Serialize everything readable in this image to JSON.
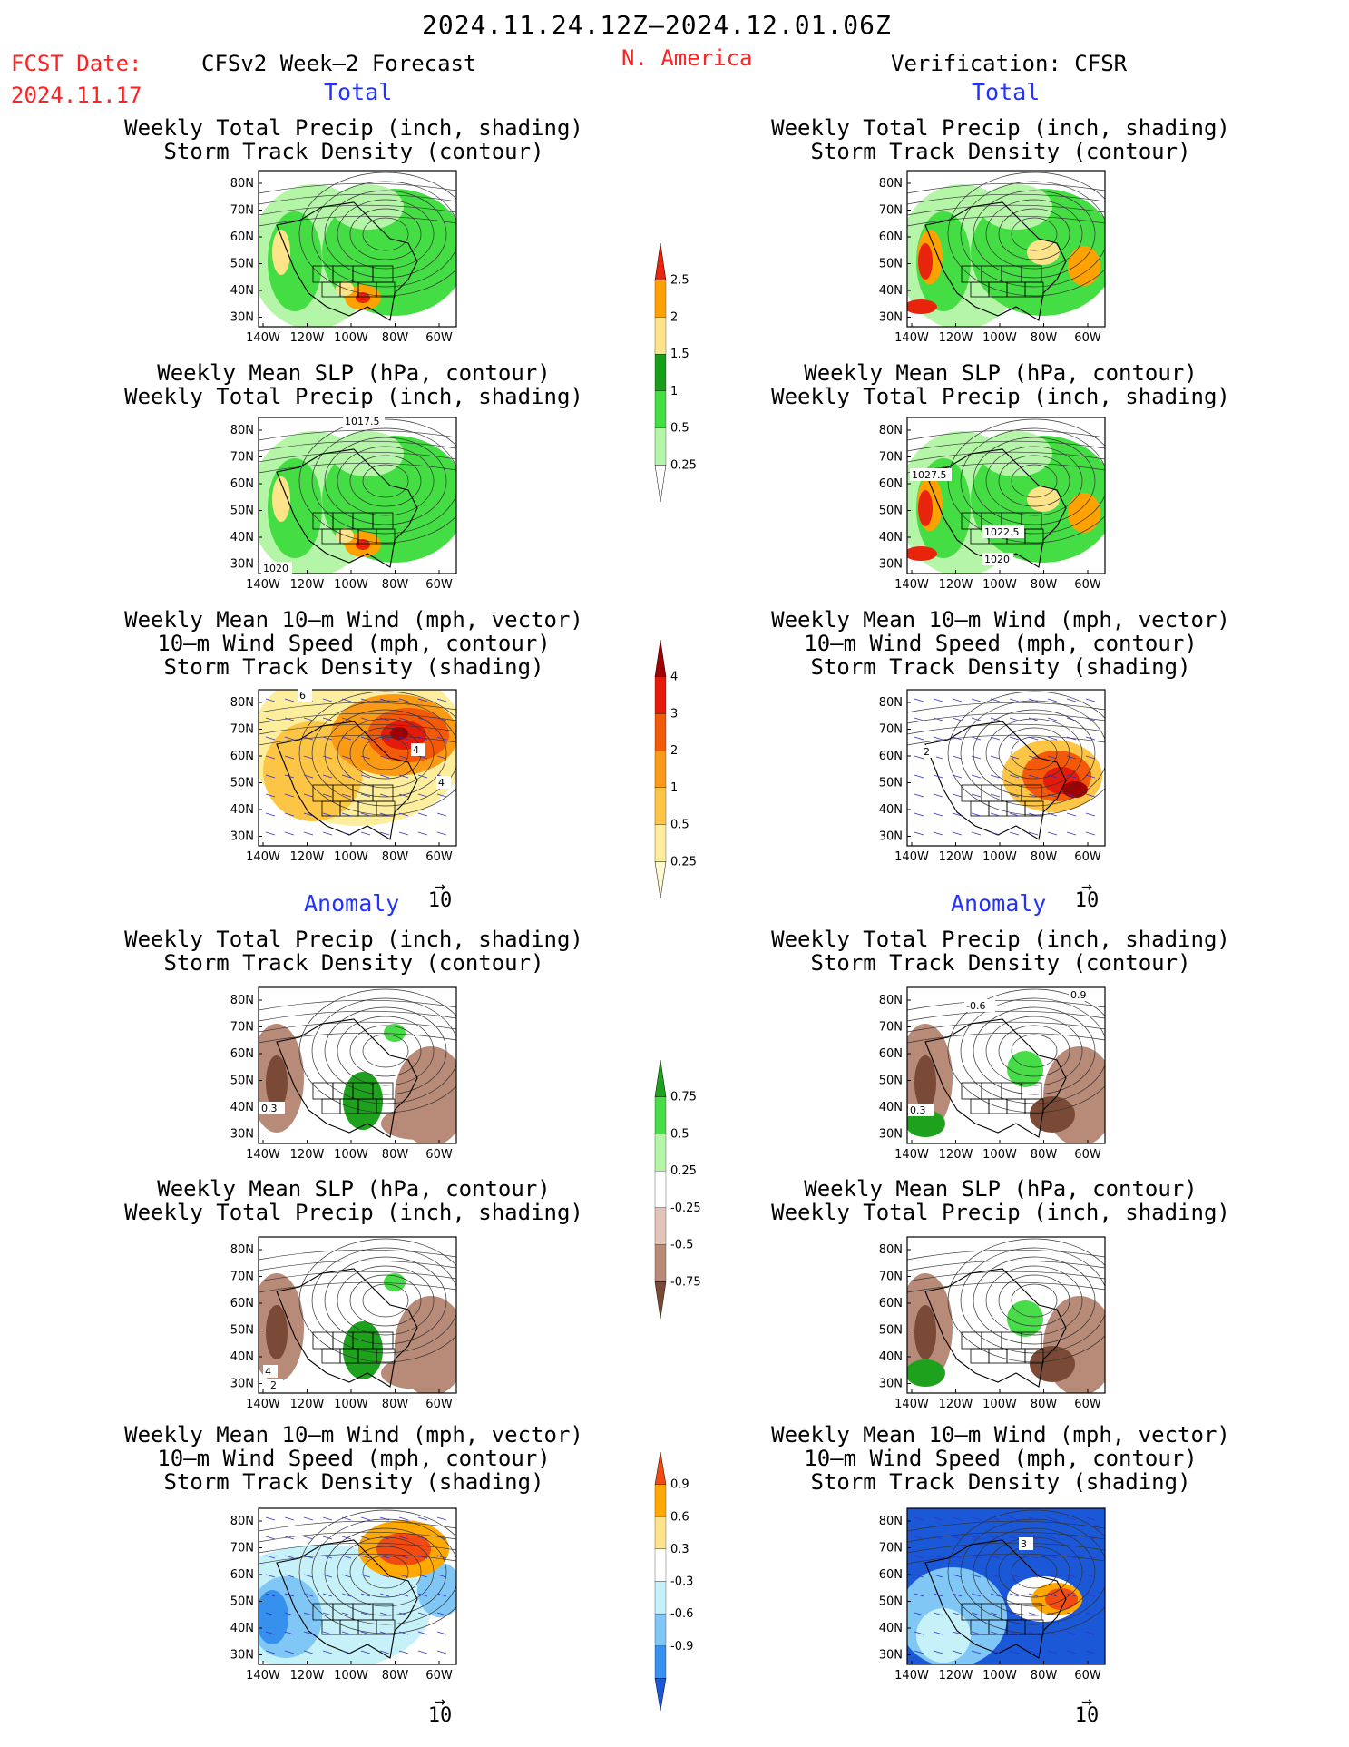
{
  "header": {
    "title": "2024.11.24.12Z–2024.12.01.06Z",
    "fcst_label": "FCST Date:",
    "fcst_date": "2024.11.17",
    "forecast_label": "CFSv2 Week–2 Forecast",
    "region": "N. America",
    "verification_label": "Verification: CFSR"
  },
  "sections": {
    "total": "Total",
    "anomaly": "Anomaly"
  },
  "panel_titles": {
    "precip_storm": [
      "Weekly Total Precip (inch, shading)",
      "Storm Track Density (contour)"
    ],
    "slp_precip": [
      "Weekly Mean SLP (hPa, contour)",
      "Weekly Total Precip (inch, shading)"
    ],
    "wind_storm": [
      "Weekly Mean 10–m Wind (mph, vector)",
      "10–m Wind Speed (mph, contour)",
      "Storm Track Density (shading)"
    ]
  },
  "axes": {
    "lat": [
      "80N",
      "70N",
      "60N",
      "50N",
      "40N",
      "30N"
    ],
    "lon": [
      "140W",
      "120W",
      "100W",
      "80W",
      "60W"
    ]
  },
  "vector_ref": "10",
  "map_labels": {
    "slp_fc_high": "1017.5",
    "slp_fc_low": "1020",
    "slp_vf_a": "1027.5",
    "slp_vf_b": "1022.5",
    "slp_vf_c": "1020",
    "wind_fc_a": "6",
    "wind_fc_b": "4",
    "wind_fc_c": "4",
    "wind_vf_a": "2",
    "anom_precip_fc": "0.3",
    "anom_precip_vf_a": "0.3",
    "anom_precip_vf_b": "-0.6",
    "anom_precip_vf_c": "0.9",
    "anom_slp_fc_a": "4",
    "anom_slp_fc_b": "2",
    "anom_wind_vf_a": "3"
  },
  "colorbars": {
    "precip": {
      "labels": [
        "2.5",
        "2",
        "1.5",
        "1",
        "0.5",
        "0.25"
      ],
      "colors": [
        "#e8250c",
        "#ffa200",
        "#fde48a",
        "#199e19",
        "#44dd44",
        "#b4f5a8"
      ]
    },
    "storm_density": {
      "labels": [
        "4",
        "3",
        "2",
        "1",
        "0.5",
        "0.25"
      ],
      "colors": [
        "#a00000",
        "#e41a0b",
        "#f25a0a",
        "#fa9a15",
        "#fdc545",
        "#fdee9e",
        "#fffad0"
      ]
    },
    "precip_anom": {
      "labels": [
        "0.75",
        "0.5",
        "0.25",
        "-0.25",
        "-0.5",
        "-0.75"
      ],
      "colors": [
        "#1ea21e",
        "#48dd48",
        "#b4f5a8",
        "#ffffff",
        "#e0c4b8",
        "#b88a78",
        "#7a4a36"
      ]
    },
    "density_anom": {
      "labels": [
        "0.9",
        "0.6",
        "0.3",
        "-0.3",
        "-0.6",
        "-0.9"
      ],
      "colors": [
        "#f24a10",
        "#ffa800",
        "#fde48a",
        "#ffffff",
        "#c6f1f9",
        "#80c7f5",
        "#3590ee",
        "#1a58d8"
      ]
    }
  }
}
